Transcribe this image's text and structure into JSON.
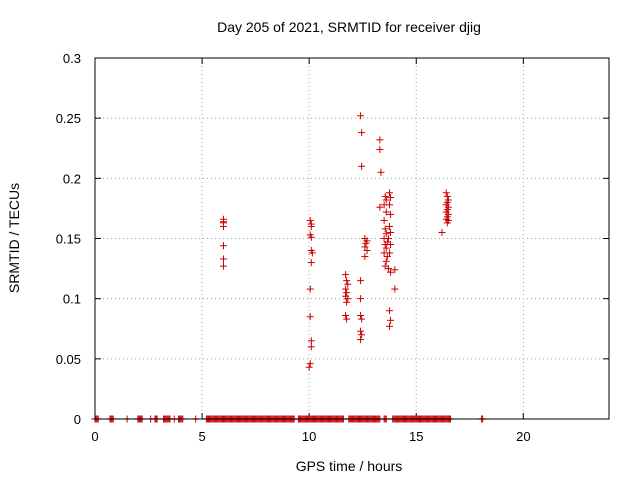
{
  "chart_data": {
    "type": "scatter",
    "title": "Day 205 of 2021, SRMTID for receiver djig",
    "xlabel": "GPS time / hours",
    "ylabel": "SRMTID / TECUs",
    "xlim": [
      0,
      24
    ],
    "ylim": [
      0,
      0.3
    ],
    "xticks": [
      0,
      5,
      10,
      15,
      20
    ],
    "yticks": [
      0,
      0.05,
      0.1,
      0.15,
      0.2,
      0.25,
      0.3
    ],
    "ytick_labels": [
      "0",
      "0.05",
      "0.1",
      "0.15",
      "0.2",
      "0.25",
      "0.3"
    ],
    "grid": true,
    "marker": "plus",
    "color": "#cc0000",
    "series": [
      {
        "points": [
          [
            6.0,
            0.166
          ],
          [
            6.0,
            0.164
          ],
          [
            6.0,
            0.163
          ],
          [
            6.0,
            0.16
          ],
          [
            6.0,
            0.144
          ],
          [
            6.0,
            0.133
          ],
          [
            6.0,
            0.127
          ],
          [
            10.05,
            0.165
          ],
          [
            10.1,
            0.162
          ],
          [
            10.1,
            0.16
          ],
          [
            10.05,
            0.153
          ],
          [
            10.1,
            0.151
          ],
          [
            10.1,
            0.14
          ],
          [
            10.15,
            0.138
          ],
          [
            10.1,
            0.13
          ],
          [
            10.05,
            0.108
          ],
          [
            10.05,
            0.085
          ],
          [
            10.1,
            0.065
          ],
          [
            10.1,
            0.06
          ],
          [
            10.05,
            0.046
          ],
          [
            10.0,
            0.043
          ],
          [
            11.7,
            0.12
          ],
          [
            11.75,
            0.115
          ],
          [
            11.8,
            0.112
          ],
          [
            11.7,
            0.108
          ],
          [
            11.75,
            0.105
          ],
          [
            11.7,
            0.102
          ],
          [
            11.8,
            0.1
          ],
          [
            11.75,
            0.097
          ],
          [
            11.7,
            0.086
          ],
          [
            11.75,
            0.083
          ],
          [
            12.4,
            0.252
          ],
          [
            12.45,
            0.238
          ],
          [
            12.45,
            0.21
          ],
          [
            12.4,
            0.115
          ],
          [
            12.4,
            0.1
          ],
          [
            12.4,
            0.086
          ],
          [
            12.45,
            0.083
          ],
          [
            12.4,
            0.073
          ],
          [
            12.45,
            0.07
          ],
          [
            12.4,
            0.066
          ],
          [
            12.6,
            0.15
          ],
          [
            12.7,
            0.148
          ],
          [
            12.65,
            0.146
          ],
          [
            12.6,
            0.143
          ],
          [
            12.7,
            0.14
          ],
          [
            12.6,
            0.135
          ],
          [
            13.3,
            0.232
          ],
          [
            13.3,
            0.224
          ],
          [
            13.35,
            0.205
          ],
          [
            13.3,
            0.176
          ],
          [
            13.55,
            0.185
          ],
          [
            13.6,
            0.182
          ],
          [
            13.5,
            0.178
          ],
          [
            13.6,
            0.172
          ],
          [
            13.5,
            0.165
          ],
          [
            13.55,
            0.158
          ],
          [
            13.6,
            0.154
          ],
          [
            13.5,
            0.15
          ],
          [
            13.65,
            0.147
          ],
          [
            13.55,
            0.145
          ],
          [
            13.6,
            0.142
          ],
          [
            13.5,
            0.138
          ],
          [
            13.65,
            0.135
          ],
          [
            13.6,
            0.131
          ],
          [
            13.55,
            0.127
          ],
          [
            13.75,
            0.188
          ],
          [
            13.8,
            0.184
          ],
          [
            13.75,
            0.178
          ],
          [
            13.8,
            0.17
          ],
          [
            13.75,
            0.16
          ],
          [
            13.8,
            0.155
          ],
          [
            13.7,
            0.15
          ],
          [
            13.8,
            0.145
          ],
          [
            13.75,
            0.138
          ],
          [
            13.7,
            0.125
          ],
          [
            13.8,
            0.122
          ],
          [
            13.75,
            0.09
          ],
          [
            13.8,
            0.082
          ],
          [
            13.75,
            0.077
          ],
          [
            14.0,
            0.124
          ],
          [
            14.0,
            0.108
          ],
          [
            16.2,
            0.155
          ],
          [
            16.4,
            0.188
          ],
          [
            16.45,
            0.185
          ],
          [
            16.5,
            0.182
          ],
          [
            16.45,
            0.18
          ],
          [
            16.4,
            0.178
          ],
          [
            16.5,
            0.176
          ],
          [
            16.45,
            0.174
          ],
          [
            16.4,
            0.172
          ],
          [
            16.5,
            0.17
          ],
          [
            16.45,
            0.168
          ],
          [
            16.4,
            0.166
          ],
          [
            16.5,
            0.165
          ],
          [
            16.45,
            0.163
          ]
        ],
        "zero_segments": [
          [
            0.0,
            0.15
          ],
          [
            0.7,
            0.85
          ],
          [
            1.5,
            1.5
          ],
          [
            2.0,
            2.2
          ],
          [
            2.6,
            2.6
          ],
          [
            2.8,
            2.9
          ],
          [
            3.2,
            3.5
          ],
          [
            3.7,
            3.7
          ],
          [
            3.9,
            4.1
          ],
          [
            4.7,
            4.7
          ],
          [
            5.2,
            9.3
          ],
          [
            9.5,
            11.6
          ],
          [
            11.85,
            13.3
          ],
          [
            13.5,
            13.6
          ],
          [
            13.9,
            16.6
          ],
          [
            18.05,
            18.1
          ]
        ]
      }
    ]
  }
}
